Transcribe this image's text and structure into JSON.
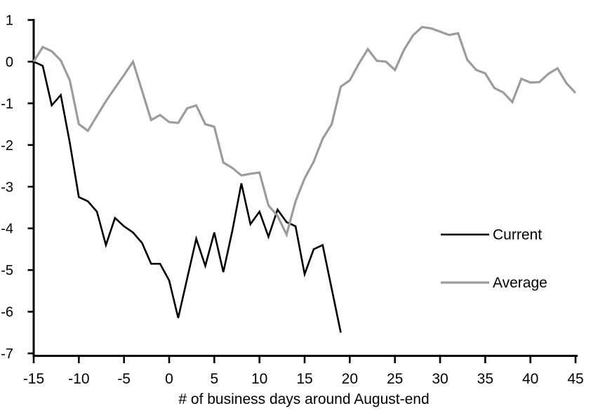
{
  "chart_data": {
    "type": "line",
    "title": "",
    "xlabel": "# of business days around August-end",
    "ylabel": "",
    "xlim": [
      -15,
      45
    ],
    "ylim": [
      -7,
      1
    ],
    "xticks": [
      -15,
      -10,
      -5,
      0,
      5,
      10,
      15,
      20,
      25,
      30,
      35,
      40,
      45
    ],
    "yticks": [
      1,
      0,
      -1,
      -2,
      -3,
      -4,
      -5,
      -6,
      -7
    ],
    "grid": false,
    "background_color": "#ffffff",
    "axis_color": "#000000",
    "legend_position": "right-middle",
    "series": [
      {
        "name": "Current",
        "color": "#000000",
        "line_width": 2.6,
        "x": [
          -15,
          -14,
          -13,
          -12,
          -11,
          -10,
          -9,
          -8,
          -7,
          -6,
          -5,
          -4,
          -3,
          -2,
          -1,
          0,
          1,
          2,
          3,
          4,
          5,
          6,
          7,
          8,
          9,
          10,
          11,
          12,
          13,
          14,
          15,
          16,
          17,
          18,
          19
        ],
        "values": [
          0,
          -0.1,
          -1.05,
          -0.8,
          -1.95,
          -3.25,
          -3.35,
          -3.6,
          -4.4,
          -3.75,
          -3.95,
          -4.1,
          -4.35,
          -4.85,
          -4.85,
          -5.25,
          -6.15,
          -5.2,
          -4.25,
          -4.9,
          -4.1,
          -5.05,
          -4.05,
          -2.92,
          -3.9,
          -3.6,
          -4.2,
          -3.55,
          -3.85,
          -3.95,
          -5.1,
          -4.5,
          -4.4,
          -5.45,
          -6.5
        ]
      },
      {
        "name": "Average",
        "color": "#9c9c9c",
        "line_width": 3.2,
        "x": [
          -15,
          -14,
          -13,
          -12,
          -11,
          -10,
          -9,
          -8,
          -7,
          -6,
          -5,
          -4,
          -3,
          -2,
          -1,
          0,
          1,
          2,
          3,
          4,
          5,
          6,
          7,
          8,
          9,
          10,
          11,
          12,
          13,
          14,
          15,
          16,
          17,
          18,
          19,
          20,
          21,
          22,
          23,
          24,
          25,
          26,
          27,
          28,
          29,
          30,
          31,
          32,
          33,
          34,
          35,
          36,
          37,
          38,
          39,
          40,
          41,
          42,
          43,
          44,
          45
        ],
        "values": [
          0,
          0.35,
          0.25,
          0.03,
          -0.45,
          -1.5,
          -1.66,
          -1.3,
          -0.95,
          -0.63,
          -0.32,
          0,
          -0.7,
          -1.4,
          -1.28,
          -1.45,
          -1.47,
          -1.12,
          -1.05,
          -1.5,
          -1.56,
          -2.42,
          -2.55,
          -2.73,
          -2.69,
          -2.66,
          -3.45,
          -3.7,
          -4.15,
          -3.35,
          -2.8,
          -2.4,
          -1.85,
          -1.5,
          -0.6,
          -0.45,
          -0.05,
          0.3,
          0.02,
          0,
          -0.2,
          0.28,
          0.63,
          0.83,
          0.8,
          0.72,
          0.64,
          0.68,
          0.05,
          -0.2,
          -0.28,
          -0.63,
          -0.74,
          -0.97,
          -0.41,
          -0.5,
          -0.49,
          -0.29,
          -0.16,
          -0.52,
          -0.75
        ]
      }
    ],
    "legend": {
      "entries": [
        "Current",
        "Average"
      ]
    }
  }
}
